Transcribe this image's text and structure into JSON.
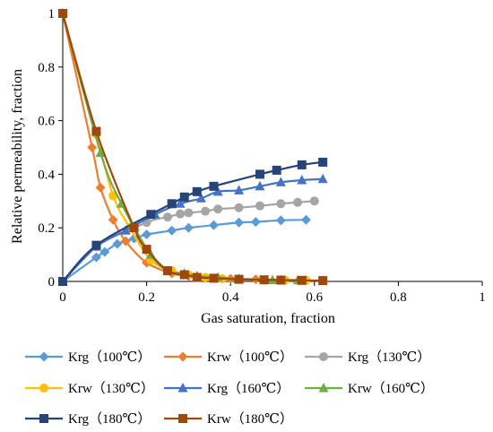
{
  "chart_data": {
    "type": "scatter",
    "xlabel": "Gas saturation, fraction",
    "ylabel": "Relative permeability, fraction",
    "xlim": [
      0,
      1
    ],
    "ylim": [
      0,
      1
    ],
    "xticks": [
      "0",
      "0.2",
      "0.4",
      "0.6",
      "0.8",
      "1"
    ],
    "yticks": [
      "0",
      "0.2",
      "0.4",
      "0.6",
      "0.8",
      "1"
    ],
    "grid": false,
    "legend_position": "bottom",
    "series": [
      {
        "name": "Krg（100℃）",
        "color": "#5B9BD5",
        "marker": "diamond",
        "x": [
          0,
          0.08,
          0.1,
          0.13,
          0.17,
          0.2,
          0.26,
          0.3,
          0.36,
          0.42,
          0.46,
          0.52,
          0.58
        ],
        "y": [
          0,
          0.09,
          0.11,
          0.14,
          0.16,
          0.175,
          0.19,
          0.2,
          0.21,
          0.22,
          0.222,
          0.228,
          0.23
        ]
      },
      {
        "name": "Krw（100℃）",
        "color": "#ED7D31",
        "marker": "diamond",
        "x": [
          0,
          0.07,
          0.09,
          0.12,
          0.15,
          0.2,
          0.26,
          0.3,
          0.34,
          0.4,
          0.46,
          0.52,
          0.58
        ],
        "y": [
          1,
          0.5,
          0.35,
          0.23,
          0.15,
          0.07,
          0.03,
          0.02,
          0.013,
          0.01,
          0.008,
          0.006,
          0.005
        ]
      },
      {
        "name": "Krg（130℃）",
        "color": "#A5A5A5",
        "marker": "circle",
        "x": [
          0,
          0.08,
          0.2,
          0.25,
          0.28,
          0.3,
          0.34,
          0.37,
          0.42,
          0.47,
          0.52,
          0.56,
          0.6
        ],
        "y": [
          0,
          0.13,
          0.22,
          0.24,
          0.252,
          0.256,
          0.262,
          0.27,
          0.275,
          0.282,
          0.29,
          0.295,
          0.3
        ]
      },
      {
        "name": "Krw（130℃）",
        "color": "#FFC000",
        "marker": "circle",
        "x": [
          0,
          0.08,
          0.12,
          0.16,
          0.21,
          0.26,
          0.3,
          0.34,
          0.38,
          0.42,
          0.48,
          0.53,
          0.58
        ],
        "y": [
          1,
          0.55,
          0.32,
          0.2,
          0.08,
          0.04,
          0.025,
          0.015,
          0.01,
          0.008,
          0.006,
          0.005,
          0.004
        ]
      },
      {
        "name": "Krg（160℃）",
        "color": "#4472C4",
        "marker": "triangle",
        "x": [
          0,
          0.08,
          0.15,
          0.22,
          0.28,
          0.33,
          0.37,
          0.42,
          0.47,
          0.52,
          0.57,
          0.62
        ],
        "y": [
          0,
          0.13,
          0.19,
          0.25,
          0.29,
          0.31,
          0.335,
          0.34,
          0.355,
          0.37,
          0.378,
          0.382
        ]
      },
      {
        "name": "Krw（160℃）",
        "color": "#70AD47",
        "marker": "triangle",
        "x": [
          0,
          0.09,
          0.14,
          0.21,
          0.25,
          0.29,
          0.32,
          0.37,
          0.42,
          0.5,
          0.56,
          0.62
        ],
        "y": [
          1,
          0.48,
          0.29,
          0.1,
          0.04,
          0.03,
          0.02,
          0.015,
          0.01,
          0.005,
          0.004,
          0.003
        ]
      },
      {
        "name": "Krg（180℃）",
        "color": "#264478",
        "marker": "square",
        "x": [
          0,
          0.08,
          0.21,
          0.26,
          0.29,
          0.32,
          0.36,
          0.47,
          0.51,
          0.57,
          0.62
        ],
        "y": [
          0,
          0.135,
          0.25,
          0.29,
          0.315,
          0.335,
          0.355,
          0.4,
          0.415,
          0.435,
          0.445
        ]
      },
      {
        "name": "Krw（180℃）",
        "color": "#9E480E",
        "marker": "square",
        "x": [
          0,
          0.08,
          0.17,
          0.2,
          0.25,
          0.29,
          0.32,
          0.36,
          0.42,
          0.48,
          0.52,
          0.57,
          0.62
        ],
        "y": [
          1,
          0.56,
          0.2,
          0.12,
          0.04,
          0.025,
          0.015,
          0.012,
          0.008,
          0.006,
          0.005,
          0.004,
          0.003
        ]
      }
    ]
  }
}
